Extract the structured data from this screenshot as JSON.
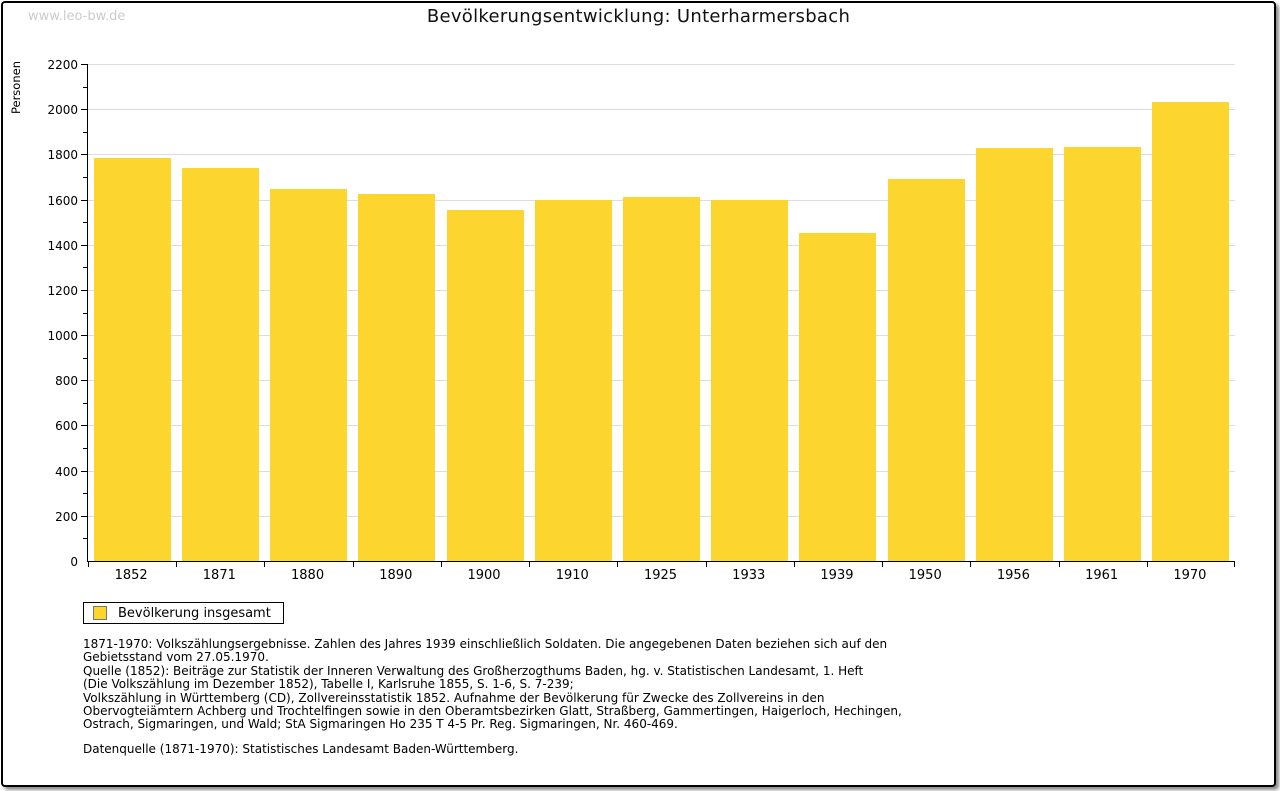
{
  "watermark": "www.leo-bw.de",
  "header": {
    "title": "Bevölkerungsentwicklung: Unterharmersbach"
  },
  "colors": {
    "bar": "#FDD52F",
    "grid": "#DDDDDD",
    "axis": "#000000",
    "watermark": "#CCCCCC"
  },
  "chart_data": {
    "type": "bar",
    "title": "Bevölkerungsentwicklung: Unterharmersbach",
    "xlabel": "",
    "ylabel": "Personen",
    "categories": [
      "1852",
      "1871",
      "1880",
      "1890",
      "1900",
      "1910",
      "1925",
      "1933",
      "1939",
      "1950",
      "1956",
      "1961",
      "1970"
    ],
    "values": [
      1783,
      1739,
      1645,
      1624,
      1553,
      1596,
      1610,
      1597,
      1453,
      1692,
      1829,
      1831,
      2031
    ],
    "series": [
      {
        "name": "Bevölkerung insgesamt",
        "values": [
          1783,
          1739,
          1645,
          1624,
          1553,
          1596,
          1610,
          1597,
          1453,
          1692,
          1829,
          1831,
          2031
        ]
      }
    ],
    "ylim": [
      0,
      2200
    ],
    "ytick_step": 200,
    "yminor_step": 100,
    "grid": true,
    "legend_position": "below-left",
    "bar_color": "#FDD52F"
  },
  "legend": {
    "label": "Bevölkerung insgesamt"
  },
  "source": {
    "lines": [
      "1871-1970: Volkszählungsergebnisse. Zahlen des Jahres 1939 einschließlich Soldaten. Die angegebenen Daten beziehen sich auf den",
      "Gebietsstand vom 27.05.1970.",
      "Quelle (1852): Beiträge zur Statistik der Inneren Verwaltung des Großherzogthums Baden, hg. v. Statistischen Landesamt, 1. Heft",
      "(Die Volkszählung im Dezember 1852), Tabelle I, Karlsruhe 1855, S. 1-6, S. 7-239;",
      "Volkszählung in Württemberg (CD), Zollvereinsstatistik 1852. Aufnahme der Bevölkerung für Zwecke des Zollvereins in den",
      "Obervogteiämtern Achberg und Trochtelfingen sowie in den Oberamtsbezirken Glatt, Straßberg, Gammertingen, Haigerloch, Hechingen,",
      "Ostrach, Sigmaringen, und Wald; StA Sigmaringen Ho 235 T 4-5 Pr. Reg. Sigmaringen, Nr. 460-469."
    ],
    "datenquelle": "Datenquelle (1871-1970): Statistisches Landesamt Baden-Württemberg."
  }
}
